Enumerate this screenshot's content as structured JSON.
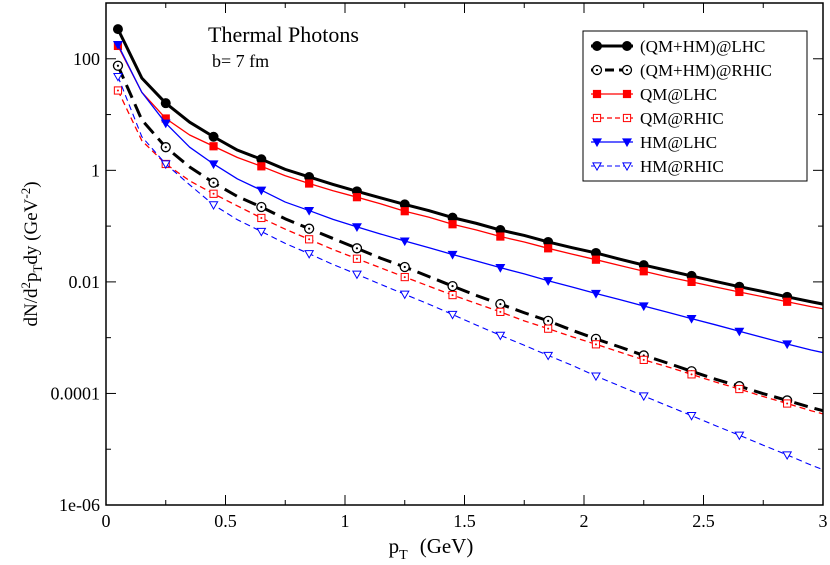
{
  "chart_data": {
    "type": "line",
    "title": "Thermal Photons",
    "subtitle": "b= 7 fm",
    "xlabel_main": "p",
    "xlabel_sub": "T",
    "xlabel_unit": "(GeV)",
    "ylabel_parts": {
      "a": "dN/d",
      "b_sup": "2",
      "c": "p",
      "d_sub": "T",
      "e": "dy  (GeV",
      "f_sup": "-2",
      "g": ")"
    },
    "xlim": [
      0,
      3
    ],
    "ylim_log10": [
      -6,
      3
    ],
    "x_ticks": [
      {
        "value": 0,
        "label": "0"
      },
      {
        "value": 0.5,
        "label": "0.5"
      },
      {
        "value": 1,
        "label": "1"
      },
      {
        "value": 1.5,
        "label": "1.5"
      },
      {
        "value": 2,
        "label": "2"
      },
      {
        "value": 2.5,
        "label": "2.5"
      },
      {
        "value": 3,
        "label": "3"
      }
    ],
    "y_ticks": [
      {
        "log10": 2,
        "label": "100"
      },
      {
        "log10": 0,
        "label": "1"
      },
      {
        "log10": -2,
        "label": "0.01"
      },
      {
        "log10": -4,
        "label": "0.0001"
      },
      {
        "log10": -6,
        "label": "1e-06"
      }
    ],
    "legend_position": "top-right",
    "series": [
      {
        "name": "(QM+HM)@LHC",
        "color": "#000000",
        "dash": "solid",
        "width": 3,
        "marker": "circle-filled",
        "x": [
          0.05,
          0.15,
          0.25,
          0.35,
          0.45,
          0.55,
          0.65,
          0.75,
          0.85,
          0.95,
          1.05,
          1.15,
          1.25,
          1.35,
          1.45,
          1.55,
          1.65,
          1.75,
          1.85,
          1.95,
          2.05,
          2.15,
          2.25,
          2.35,
          2.45,
          2.55,
          2.65,
          2.75,
          2.85,
          2.95,
          3.0
        ],
        "y": [
          340,
          45,
          16,
          7.3,
          4.0,
          2.3,
          1.58,
          1.04,
          0.76,
          0.56,
          0.42,
          0.32,
          0.245,
          0.19,
          0.142,
          0.112,
          0.085,
          0.068,
          0.052,
          0.041,
          0.033,
          0.0255,
          0.02,
          0.016,
          0.0128,
          0.0102,
          0.0082,
          0.0067,
          0.0054,
          0.0044,
          0.004
        ],
        "marker_x": [
          0.05,
          0.25,
          0.45,
          0.65,
          0.85,
          1.05,
          1.25,
          1.45,
          1.65,
          1.85,
          2.05,
          2.25,
          2.45,
          2.65,
          2.85
        ]
      },
      {
        "name": "(QM+HM)@RHIC",
        "color": "#000000",
        "dash": "long-dash",
        "width": 3,
        "marker": "circle-open-dot",
        "x": [
          0.05,
          0.15,
          0.25,
          0.35,
          0.45,
          0.55,
          0.65,
          0.75,
          0.85,
          0.95,
          1.05,
          1.15,
          1.25,
          1.35,
          1.45,
          1.55,
          1.65,
          1.75,
          1.85,
          1.95,
          2.05,
          2.15,
          2.25,
          2.35,
          2.45,
          2.55,
          2.65,
          2.75,
          2.85,
          2.95,
          3.0
        ],
        "y": [
          75,
          8,
          2.6,
          1.15,
          0.6,
          0.34,
          0.22,
          0.135,
          0.09,
          0.06,
          0.04,
          0.0265,
          0.0185,
          0.0125,
          0.0084,
          0.0057,
          0.004,
          0.0028,
          0.002,
          0.00136,
          0.00095,
          0.00068,
          0.00048,
          0.00035,
          0.00025,
          0.00018,
          0.000135,
          9.9e-05,
          7.5e-05,
          5.6e-05,
          4.9e-05
        ],
        "marker_x": [
          0.05,
          0.25,
          0.45,
          0.65,
          0.85,
          1.05,
          1.25,
          1.45,
          1.65,
          1.85,
          2.05,
          2.25,
          2.45,
          2.65,
          2.85
        ]
      },
      {
        "name": "QM@LHC",
        "color": "#ff0000",
        "dash": "solid",
        "width": 1.3,
        "marker": "square-filled",
        "x": [
          0.05,
          0.15,
          0.25,
          0.35,
          0.45,
          0.55,
          0.65,
          0.75,
          0.85,
          0.95,
          1.05,
          1.15,
          1.25,
          1.35,
          1.45,
          1.55,
          1.65,
          1.75,
          1.85,
          1.95,
          2.05,
          2.15,
          2.25,
          2.35,
          2.45,
          2.55,
          2.65,
          2.75,
          2.85,
          2.95,
          3.0
        ],
        "y": [
          170,
          25,
          8.5,
          4.3,
          2.7,
          1.7,
          1.18,
          0.8,
          0.58,
          0.43,
          0.33,
          0.25,
          0.185,
          0.145,
          0.108,
          0.085,
          0.065,
          0.052,
          0.04,
          0.0315,
          0.025,
          0.0197,
          0.0155,
          0.0123,
          0.01,
          0.0081,
          0.0066,
          0.0054,
          0.0044,
          0.0036,
          0.0033
        ],
        "marker_x": [
          0.05,
          0.25,
          0.45,
          0.65,
          0.85,
          1.05,
          1.25,
          1.45,
          1.65,
          1.85,
          2.05,
          2.25,
          2.45,
          2.65,
          2.85
        ]
      },
      {
        "name": "QM@RHIC",
        "color": "#ff0000",
        "dash": "dashed",
        "width": 1.3,
        "marker": "square-open-dot",
        "x": [
          0.05,
          0.15,
          0.25,
          0.35,
          0.45,
          0.55,
          0.65,
          0.75,
          0.85,
          0.95,
          1.05,
          1.15,
          1.25,
          1.35,
          1.45,
          1.55,
          1.65,
          1.75,
          1.85,
          1.95,
          2.05,
          2.15,
          2.25,
          2.35,
          2.45,
          2.55,
          2.65,
          2.75,
          2.85,
          2.95,
          3.0
        ],
        "y": [
          27,
          3.4,
          1.3,
          0.65,
          0.38,
          0.23,
          0.14,
          0.088,
          0.058,
          0.038,
          0.026,
          0.0178,
          0.0122,
          0.0084,
          0.0058,
          0.0041,
          0.0029,
          0.002,
          0.00145,
          0.00104,
          0.00076,
          0.00055,
          0.0004,
          0.0003,
          0.00022,
          0.00016,
          0.00012,
          8.8e-05,
          6.6e-05,
          4.9e-05,
          4.3e-05
        ],
        "marker_x": [
          0.05,
          0.25,
          0.45,
          0.65,
          0.85,
          1.05,
          1.25,
          1.45,
          1.65,
          1.85,
          2.05,
          2.25,
          2.45,
          2.65,
          2.85
        ]
      },
      {
        "name": "HM@LHC",
        "color": "#0000ff",
        "dash": "solid",
        "width": 1.3,
        "marker": "triangle-down-filled",
        "x": [
          0.05,
          0.15,
          0.25,
          0.35,
          0.45,
          0.55,
          0.65,
          0.75,
          0.85,
          0.95,
          1.05,
          1.15,
          1.25,
          1.35,
          1.45,
          1.55,
          1.65,
          1.75,
          1.85,
          1.95,
          2.05,
          2.15,
          2.25,
          2.35,
          2.45,
          2.55,
          2.65,
          2.75,
          2.85,
          2.95,
          3.0
        ],
        "y": [
          180,
          25,
          7.0,
          2.6,
          1.3,
          0.7,
          0.44,
          0.27,
          0.19,
          0.132,
          0.097,
          0.072,
          0.054,
          0.0412,
          0.031,
          0.0237,
          0.018,
          0.0139,
          0.0105,
          0.0081,
          0.0062,
          0.0048,
          0.0037,
          0.00285,
          0.0022,
          0.0017,
          0.0013,
          0.001,
          0.00077,
          0.0006,
          0.00054
        ],
        "marker_x": [
          0.05,
          0.25,
          0.45,
          0.65,
          0.85,
          1.05,
          1.25,
          1.45,
          1.65,
          1.85,
          2.05,
          2.25,
          2.45,
          2.65,
          2.85
        ]
      },
      {
        "name": "HM@RHIC",
        "color": "#0000ff",
        "dash": "dashed",
        "width": 1.1,
        "marker": "triangle-down-open",
        "x": [
          0.05,
          0.15,
          0.25,
          0.35,
          0.45,
          0.55,
          0.65,
          0.75,
          0.85,
          0.95,
          1.05,
          1.15,
          1.25,
          1.35,
          1.45,
          1.55,
          1.65,
          1.75,
          1.85,
          1.95,
          2.05,
          2.15,
          2.25,
          2.35,
          2.45,
          2.55,
          2.65,
          2.75,
          2.85,
          2.95,
          3.0
        ],
        "y": [
          48,
          4.0,
          1.3,
          0.55,
          0.24,
          0.13,
          0.08,
          0.049,
          0.032,
          0.0205,
          0.0137,
          0.009,
          0.006,
          0.004,
          0.0026,
          0.00168,
          0.0011,
          0.00073,
          0.00048,
          0.00032,
          0.000205,
          0.000136,
          9e-05,
          6e-05,
          4e-05,
          2.65e-05,
          1.78e-05,
          1.18e-05,
          7.9e-06,
          5.2e-06,
          4.3e-06
        ],
        "marker_x": [
          0.05,
          0.25,
          0.45,
          0.65,
          0.85,
          1.05,
          1.25,
          1.45,
          1.65,
          1.85,
          2.05,
          2.25,
          2.45,
          2.65,
          2.85
        ]
      }
    ]
  }
}
